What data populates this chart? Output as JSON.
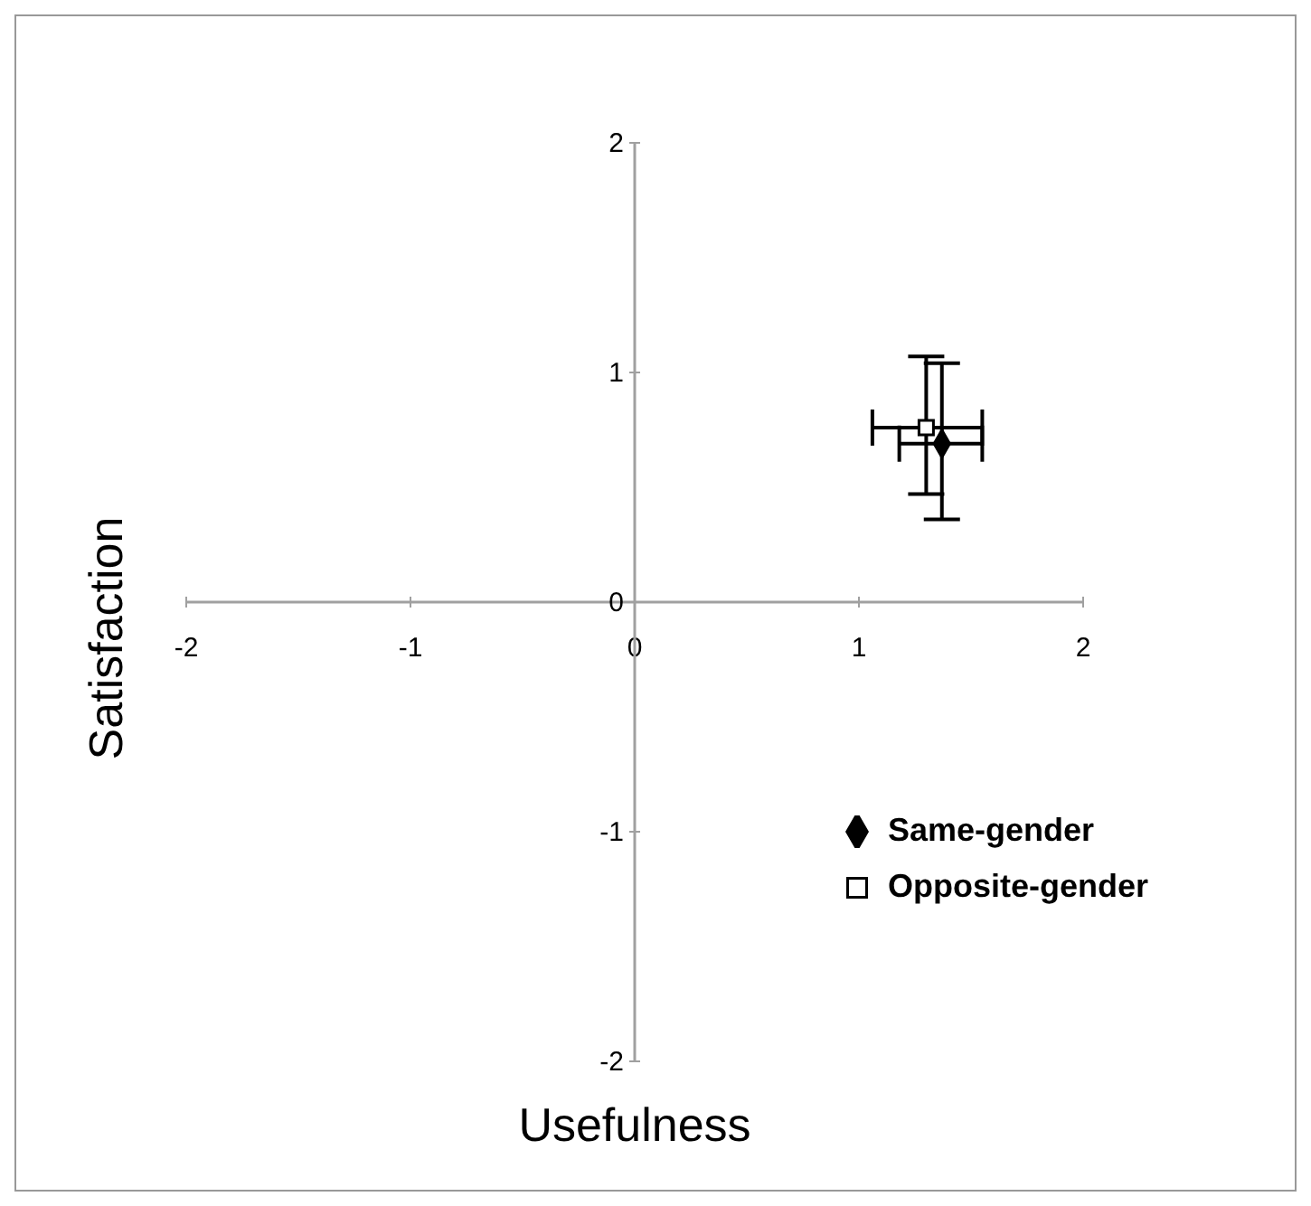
{
  "chart_data": {
    "type": "scatter",
    "xlabel": "Usefulness",
    "ylabel": "Satisfaction",
    "xlim": [
      -2,
      2
    ],
    "ylim": [
      -2,
      2
    ],
    "xticks": [
      -2,
      -1,
      0,
      1,
      2
    ],
    "yticks": [
      -2,
      -1,
      0,
      1,
      2
    ],
    "grid": false,
    "legend": "right",
    "series": [
      {
        "name": "Same-gender",
        "color": "#000000",
        "marker": "diamond",
        "x": [
          1.37
        ],
        "values": [
          0.69
        ],
        "errors": [
          [
            0.36,
            1.04
          ]
        ],
        "xerrors": [
          [
            1.18,
            1.55
          ]
        ]
      },
      {
        "name": "Opposite-gender",
        "color": "#ffffff",
        "marker": "square",
        "x": [
          1.3
        ],
        "values": [
          0.76
        ],
        "errors": [
          [
            0.47,
            1.07
          ]
        ],
        "xerrors": [
          [
            1.06,
            1.55
          ]
        ]
      }
    ]
  }
}
